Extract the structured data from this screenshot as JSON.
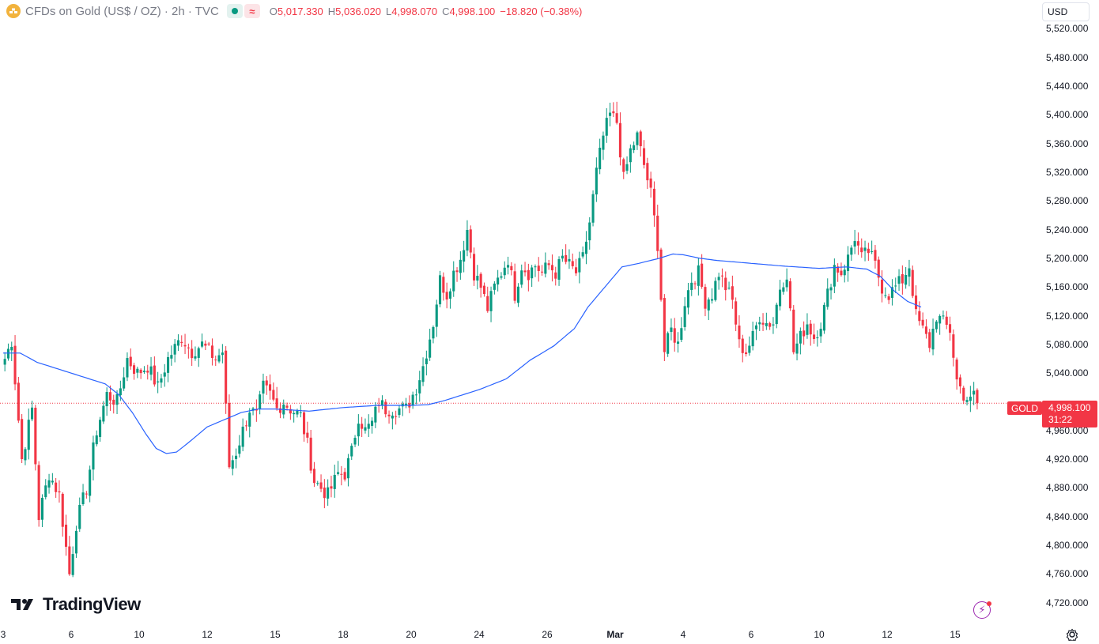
{
  "header": {
    "title": "CFDs on Gold (US$ / OZ) · 2h · TVC",
    "ohlc": [
      {
        "key": "O",
        "value": "5,017.330"
      },
      {
        "key": "H",
        "value": "5,036.020"
      },
      {
        "key": "L",
        "value": "4,998.070"
      },
      {
        "key": "C",
        "value": "4,998.100"
      }
    ],
    "change": "−18.820 (−0.38%)"
  },
  "currency": "USD",
  "price_tag": {
    "symbol": "GOLD",
    "price": "4,998.100",
    "countdown": "31:22"
  },
  "logo": "TradingView",
  "colors": {
    "up": "#089981",
    "down": "#f23645",
    "ma": "#2962ff",
    "last": "#f23645"
  },
  "chart_data": {
    "type": "candlestick",
    "title": "CFDs on Gold (US$ / OZ)",
    "interval": "2h",
    "ylim": [
      4690,
      5560
    ],
    "y_ticks": [
      "5,520.000",
      "5,480.000",
      "5,440.000",
      "5,400.000",
      "5,360.000",
      "5,320.000",
      "5,280.000",
      "5,240.000",
      "5,200.000",
      "5,160.000",
      "5,120.000",
      "5,080.000",
      "5,040.000",
      "4,960.000",
      "4,920.000",
      "4,880.000",
      "4,840.000",
      "4,800.000",
      "4,760.000",
      "4,720.000"
    ],
    "y_tick_values": [
      5520,
      5480,
      5440,
      5400,
      5360,
      5320,
      5280,
      5240,
      5200,
      5160,
      5120,
      5080,
      5040,
      4960,
      4920,
      4880,
      4840,
      4800,
      4760,
      4720
    ],
    "x_ticks": [
      {
        "label": "3",
        "bar": 0
      },
      {
        "label": "6",
        "bar": 20
      },
      {
        "label": "10",
        "bar": 40
      },
      {
        "label": "12",
        "bar": 60
      },
      {
        "label": "15",
        "bar": 80
      },
      {
        "label": "18",
        "bar": 100
      },
      {
        "label": "20",
        "bar": 120
      },
      {
        "label": "24",
        "bar": 140
      },
      {
        "label": "26",
        "bar": 160
      },
      {
        "label": "Mar",
        "bar": 180
      },
      {
        "label": "4",
        "bar": 200
      },
      {
        "label": "6",
        "bar": 220
      },
      {
        "label": "10",
        "bar": 240
      },
      {
        "label": "12",
        "bar": 260
      },
      {
        "label": "15",
        "bar": 280
      }
    ],
    "last_price": 4998.1,
    "close_anchors": [
      [
        0,
        5060
      ],
      [
        2,
        5085
      ],
      [
        5,
        4920
      ],
      [
        8,
        4990
      ],
      [
        10,
        4840
      ],
      [
        13,
        4900
      ],
      [
        16,
        4870
      ],
      [
        19,
        4760
      ],
      [
        21,
        4830
      ],
      [
        24,
        4880
      ],
      [
        27,
        4960
      ],
      [
        30,
        5010
      ],
      [
        33,
        5000
      ],
      [
        36,
        5060
      ],
      [
        39,
        5040
      ],
      [
        42,
        5050
      ],
      [
        45,
        5020
      ],
      [
        48,
        5060
      ],
      [
        52,
        5090
      ],
      [
        55,
        5070
      ],
      [
        58,
        5080
      ],
      [
        62,
        5060
      ],
      [
        64,
        5070
      ],
      [
        66,
        4910
      ],
      [
        68,
        4930
      ],
      [
        70,
        4960
      ],
      [
        72,
        4990
      ],
      [
        74,
        4980
      ],
      [
        76,
        5020
      ],
      [
        78,
        5010
      ],
      [
        80,
        4990
      ],
      [
        82,
        5000
      ],
      [
        84,
        4990
      ],
      [
        87,
        4980
      ],
      [
        89,
        4940
      ],
      [
        91,
        4890
      ],
      [
        93,
        4880
      ],
      [
        95,
        4870
      ],
      [
        98,
        4900
      ],
      [
        100,
        4900
      ],
      [
        102,
        4930
      ],
      [
        104,
        4980
      ],
      [
        106,
        4960
      ],
      [
        108,
        4970
      ],
      [
        110,
        5000
      ],
      [
        112,
        4990
      ],
      [
        115,
        4990
      ],
      [
        118,
        4990
      ],
      [
        121,
        5020
      ],
      [
        123,
        5050
      ],
      [
        126,
        5110
      ],
      [
        128,
        5170
      ],
      [
        130,
        5150
      ],
      [
        132,
        5180
      ],
      [
        134,
        5200
      ],
      [
        136,
        5240
      ],
      [
        138,
        5180
      ],
      [
        140,
        5160
      ],
      [
        142,
        5130
      ],
      [
        144,
        5160
      ],
      [
        146,
        5180
      ],
      [
        148,
        5200
      ],
      [
        150,
        5150
      ],
      [
        152,
        5190
      ],
      [
        154,
        5180
      ],
      [
        156,
        5190
      ],
      [
        158,
        5180
      ],
      [
        160,
        5190
      ],
      [
        162,
        5180
      ],
      [
        164,
        5200
      ],
      [
        166,
        5190
      ],
      [
        168,
        5180
      ],
      [
        170,
        5200
      ],
      [
        172,
        5250
      ],
      [
        174,
        5320
      ],
      [
        176,
        5370
      ],
      [
        178,
        5400
      ],
      [
        180,
        5390
      ],
      [
        182,
        5310
      ],
      [
        184,
        5350
      ],
      [
        186,
        5370
      ],
      [
        188,
        5330
      ],
      [
        190,
        5290
      ],
      [
        192,
        5220
      ],
      [
        194,
        5070
      ],
      [
        196,
        5100
      ],
      [
        198,
        5080
      ],
      [
        200,
        5140
      ],
      [
        202,
        5170
      ],
      [
        204,
        5180
      ],
      [
        206,
        5140
      ],
      [
        208,
        5150
      ],
      [
        210,
        5180
      ],
      [
        212,
        5160
      ],
      [
        214,
        5140
      ],
      [
        216,
        5080
      ],
      [
        218,
        5070
      ],
      [
        220,
        5090
      ],
      [
        222,
        5120
      ],
      [
        224,
        5110
      ],
      [
        226,
        5110
      ],
      [
        228,
        5160
      ],
      [
        230,
        5180
      ],
      [
        232,
        5070
      ],
      [
        234,
        5090
      ],
      [
        236,
        5110
      ],
      [
        238,
        5090
      ],
      [
        240,
        5110
      ],
      [
        242,
        5150
      ],
      [
        244,
        5190
      ],
      [
        246,
        5180
      ],
      [
        248,
        5200
      ],
      [
        250,
        5230
      ],
      [
        252,
        5200
      ],
      [
        254,
        5210
      ],
      [
        256,
        5190
      ],
      [
        258,
        5160
      ],
      [
        260,
        5150
      ],
      [
        262,
        5160
      ],
      [
        264,
        5170
      ],
      [
        266,
        5190
      ],
      [
        268,
        5120
      ],
      [
        270,
        5100
      ],
      [
        272,
        5080
      ],
      [
        274,
        5120
      ],
      [
        276,
        5110
      ],
      [
        278,
        5100
      ],
      [
        280,
        5030
      ],
      [
        282,
        5010
      ],
      [
        284,
        5000
      ],
      [
        285,
        5010
      ],
      [
        286,
        4998.1
      ]
    ],
    "ma_anchors": [
      [
        0,
        5068
      ],
      [
        5,
        5068
      ],
      [
        10,
        5055
      ],
      [
        20,
        5040
      ],
      [
        30,
        5025
      ],
      [
        34,
        5010
      ],
      [
        38,
        4985
      ],
      [
        42,
        4955
      ],
      [
        45,
        4935
      ],
      [
        48,
        4928
      ],
      [
        51,
        4930
      ],
      [
        55,
        4945
      ],
      [
        60,
        4965
      ],
      [
        65,
        4975
      ],
      [
        70,
        4985
      ],
      [
        75,
        4990
      ],
      [
        80,
        4990
      ],
      [
        90,
        4987
      ],
      [
        100,
        4992
      ],
      [
        110,
        4995
      ],
      [
        115,
        4995
      ],
      [
        120,
        4995
      ],
      [
        125,
        4996
      ],
      [
        130,
        5002
      ],
      [
        140,
        5017
      ],
      [
        148,
        5032
      ],
      [
        155,
        5058
      ],
      [
        162,
        5078
      ],
      [
        168,
        5102
      ],
      [
        172,
        5132
      ],
      [
        177,
        5160
      ],
      [
        182,
        5188
      ],
      [
        187,
        5193
      ],
      [
        193,
        5200
      ],
      [
        197,
        5206
      ],
      [
        200,
        5205
      ],
      [
        205,
        5200
      ],
      [
        210,
        5197
      ],
      [
        220,
        5193
      ],
      [
        230,
        5189
      ],
      [
        240,
        5186
      ],
      [
        248,
        5188
      ],
      [
        254,
        5185
      ],
      [
        258,
        5175
      ],
      [
        262,
        5155
      ],
      [
        266,
        5140
      ],
      [
        270,
        5132
      ]
    ],
    "bars": 287,
    "series_name": "GOLD"
  }
}
